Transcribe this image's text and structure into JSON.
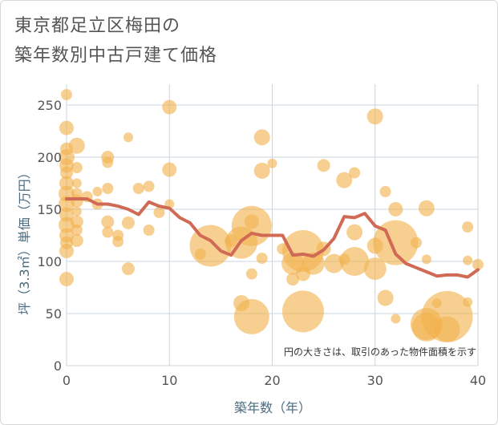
{
  "chart_data": {
    "type": "scatter",
    "title_lines": [
      "東京都足立区梅田の",
      "築年数別中古戸建て価格"
    ],
    "xlabel": "築年数（年）",
    "ylabel": "坪（3.3㎡）単価（万円）",
    "xlim": [
      0,
      40
    ],
    "ylim": [
      0,
      270
    ],
    "xticks": [
      0,
      10,
      20,
      30,
      40
    ],
    "yticks": [
      0,
      50,
      100,
      150,
      200,
      250
    ],
    "grid": true,
    "note": "円の大きさは、取引のあった物件面積を示す",
    "colors": {
      "bubble": "#f2b24d",
      "line": "#d06a55",
      "grid": "#c9d5de",
      "text": "#555555"
    },
    "bubbles": [
      {
        "x": 0,
        "y": 260,
        "size": 7
      },
      {
        "x": 0,
        "y": 228,
        "size": 9
      },
      {
        "x": 0,
        "y": 208,
        "size": 8
      },
      {
        "x": 0,
        "y": 200,
        "size": 10
      },
      {
        "x": 0,
        "y": 192,
        "size": 9
      },
      {
        "x": 0,
        "y": 185,
        "size": 8
      },
      {
        "x": 0,
        "y": 175,
        "size": 9
      },
      {
        "x": 0,
        "y": 165,
        "size": 10
      },
      {
        "x": 0,
        "y": 155,
        "size": 10
      },
      {
        "x": 0,
        "y": 145,
        "size": 9
      },
      {
        "x": 0,
        "y": 135,
        "size": 10
      },
      {
        "x": 0,
        "y": 125,
        "size": 9
      },
      {
        "x": 0,
        "y": 118,
        "size": 8
      },
      {
        "x": 0,
        "y": 110,
        "size": 9
      },
      {
        "x": 0,
        "y": 83,
        "size": 9
      },
      {
        "x": 1,
        "y": 211,
        "size": 10
      },
      {
        "x": 1,
        "y": 190,
        "size": 7
      },
      {
        "x": 1,
        "y": 175,
        "size": 6
      },
      {
        "x": 1,
        "y": 165,
        "size": 7
      },
      {
        "x": 1,
        "y": 158,
        "size": 8
      },
      {
        "x": 1,
        "y": 148,
        "size": 6
      },
      {
        "x": 1,
        "y": 138,
        "size": 8
      },
      {
        "x": 1,
        "y": 130,
        "size": 7
      },
      {
        "x": 1,
        "y": 120,
        "size": 8
      },
      {
        "x": 2,
        "y": 162,
        "size": 7
      },
      {
        "x": 3,
        "y": 167,
        "size": 6
      },
      {
        "x": 3,
        "y": 155,
        "size": 7
      },
      {
        "x": 4,
        "y": 200,
        "size": 8
      },
      {
        "x": 4,
        "y": 195,
        "size": 7
      },
      {
        "x": 4,
        "y": 170,
        "size": 7
      },
      {
        "x": 4,
        "y": 138,
        "size": 8
      },
      {
        "x": 4,
        "y": 128,
        "size": 7
      },
      {
        "x": 5,
        "y": 125,
        "size": 7
      },
      {
        "x": 5,
        "y": 119,
        "size": 7
      },
      {
        "x": 6,
        "y": 219,
        "size": 6
      },
      {
        "x": 6,
        "y": 137,
        "size": 8
      },
      {
        "x": 6,
        "y": 93,
        "size": 8
      },
      {
        "x": 7,
        "y": 170,
        "size": 7
      },
      {
        "x": 8,
        "y": 172,
        "size": 7
      },
      {
        "x": 8,
        "y": 130,
        "size": 7
      },
      {
        "x": 9,
        "y": 147,
        "size": 7
      },
      {
        "x": 10,
        "y": 248,
        "size": 9
      },
      {
        "x": 10,
        "y": 188,
        "size": 9
      },
      {
        "x": 10,
        "y": 155,
        "size": 6
      },
      {
        "x": 13,
        "y": 107,
        "size": 7
      },
      {
        "x": 14,
        "y": 115,
        "size": 26
      },
      {
        "x": 16,
        "y": 120,
        "size": 8
      },
      {
        "x": 17,
        "y": 118,
        "size": 20
      },
      {
        "x": 17,
        "y": 60,
        "size": 10
      },
      {
        "x": 18,
        "y": 134,
        "size": 25
      },
      {
        "x": 18,
        "y": 138,
        "size": 9
      },
      {
        "x": 18,
        "y": 88,
        "size": 7
      },
      {
        "x": 18,
        "y": 47,
        "size": 22
      },
      {
        "x": 19,
        "y": 219,
        "size": 10
      },
      {
        "x": 19,
        "y": 187,
        "size": 10
      },
      {
        "x": 19,
        "y": 103,
        "size": 7
      },
      {
        "x": 20,
        "y": 194,
        "size": 6
      },
      {
        "x": 21,
        "y": 112,
        "size": 7
      },
      {
        "x": 22,
        "y": 98,
        "size": 14
      },
      {
        "x": 22,
        "y": 83,
        "size": 8
      },
      {
        "x": 23,
        "y": 110,
        "size": 26
      },
      {
        "x": 23,
        "y": 88,
        "size": 9
      },
      {
        "x": 23,
        "y": 52,
        "size": 26
      },
      {
        "x": 24,
        "y": 98,
        "size": 14
      },
      {
        "x": 25,
        "y": 192,
        "size": 8
      },
      {
        "x": 25,
        "y": 112,
        "size": 9
      },
      {
        "x": 26,
        "y": 98,
        "size": 12
      },
      {
        "x": 27,
        "y": 178,
        "size": 10
      },
      {
        "x": 27,
        "y": 102,
        "size": 7
      },
      {
        "x": 28,
        "y": 185,
        "size": 7
      },
      {
        "x": 28,
        "y": 128,
        "size": 10
      },
      {
        "x": 28,
        "y": 100,
        "size": 18
      },
      {
        "x": 30,
        "y": 239,
        "size": 10
      },
      {
        "x": 30,
        "y": 115,
        "size": 10
      },
      {
        "x": 30,
        "y": 93,
        "size": 14
      },
      {
        "x": 31,
        "y": 167,
        "size": 7
      },
      {
        "x": 31,
        "y": 65,
        "size": 10
      },
      {
        "x": 32,
        "y": 150,
        "size": 9
      },
      {
        "x": 32,
        "y": 118,
        "size": 28
      },
      {
        "x": 32,
        "y": 45,
        "size": 6
      },
      {
        "x": 34,
        "y": 118,
        "size": 7
      },
      {
        "x": 35,
        "y": 151,
        "size": 10
      },
      {
        "x": 35,
        "y": 102,
        "size": 6
      },
      {
        "x": 35,
        "y": 40,
        "size": 20
      },
      {
        "x": 35,
        "y": 37,
        "size": 18
      },
      {
        "x": 36,
        "y": 60,
        "size": 6
      },
      {
        "x": 37,
        "y": 47,
        "size": 32
      },
      {
        "x": 37,
        "y": 35,
        "size": 16
      },
      {
        "x": 39,
        "y": 133,
        "size": 7
      },
      {
        "x": 39,
        "y": 101,
        "size": 6
      },
      {
        "x": 39,
        "y": 61,
        "size": 6
      },
      {
        "x": 40,
        "y": 97,
        "size": 7
      }
    ],
    "trend": {
      "x": [
        0,
        1,
        2,
        3,
        4,
        5,
        6,
        7,
        8,
        9,
        10,
        11,
        12,
        13,
        14,
        15,
        16,
        17,
        18,
        19,
        20,
        21,
        22,
        23,
        24,
        25,
        26,
        27,
        28,
        29,
        30,
        31,
        32,
        33,
        34,
        35,
        36,
        37,
        38,
        39,
        40
      ],
      "y": [
        160,
        160,
        160,
        155,
        155,
        153,
        150,
        145,
        157,
        153,
        151,
        142,
        137,
        125,
        120,
        110,
        106,
        120,
        127,
        125,
        125,
        125,
        106,
        107,
        105,
        111,
        122,
        143,
        142,
        146,
        134,
        130,
        107,
        98,
        94,
        90,
        86,
        87,
        87,
        85,
        92
      ]
    }
  }
}
